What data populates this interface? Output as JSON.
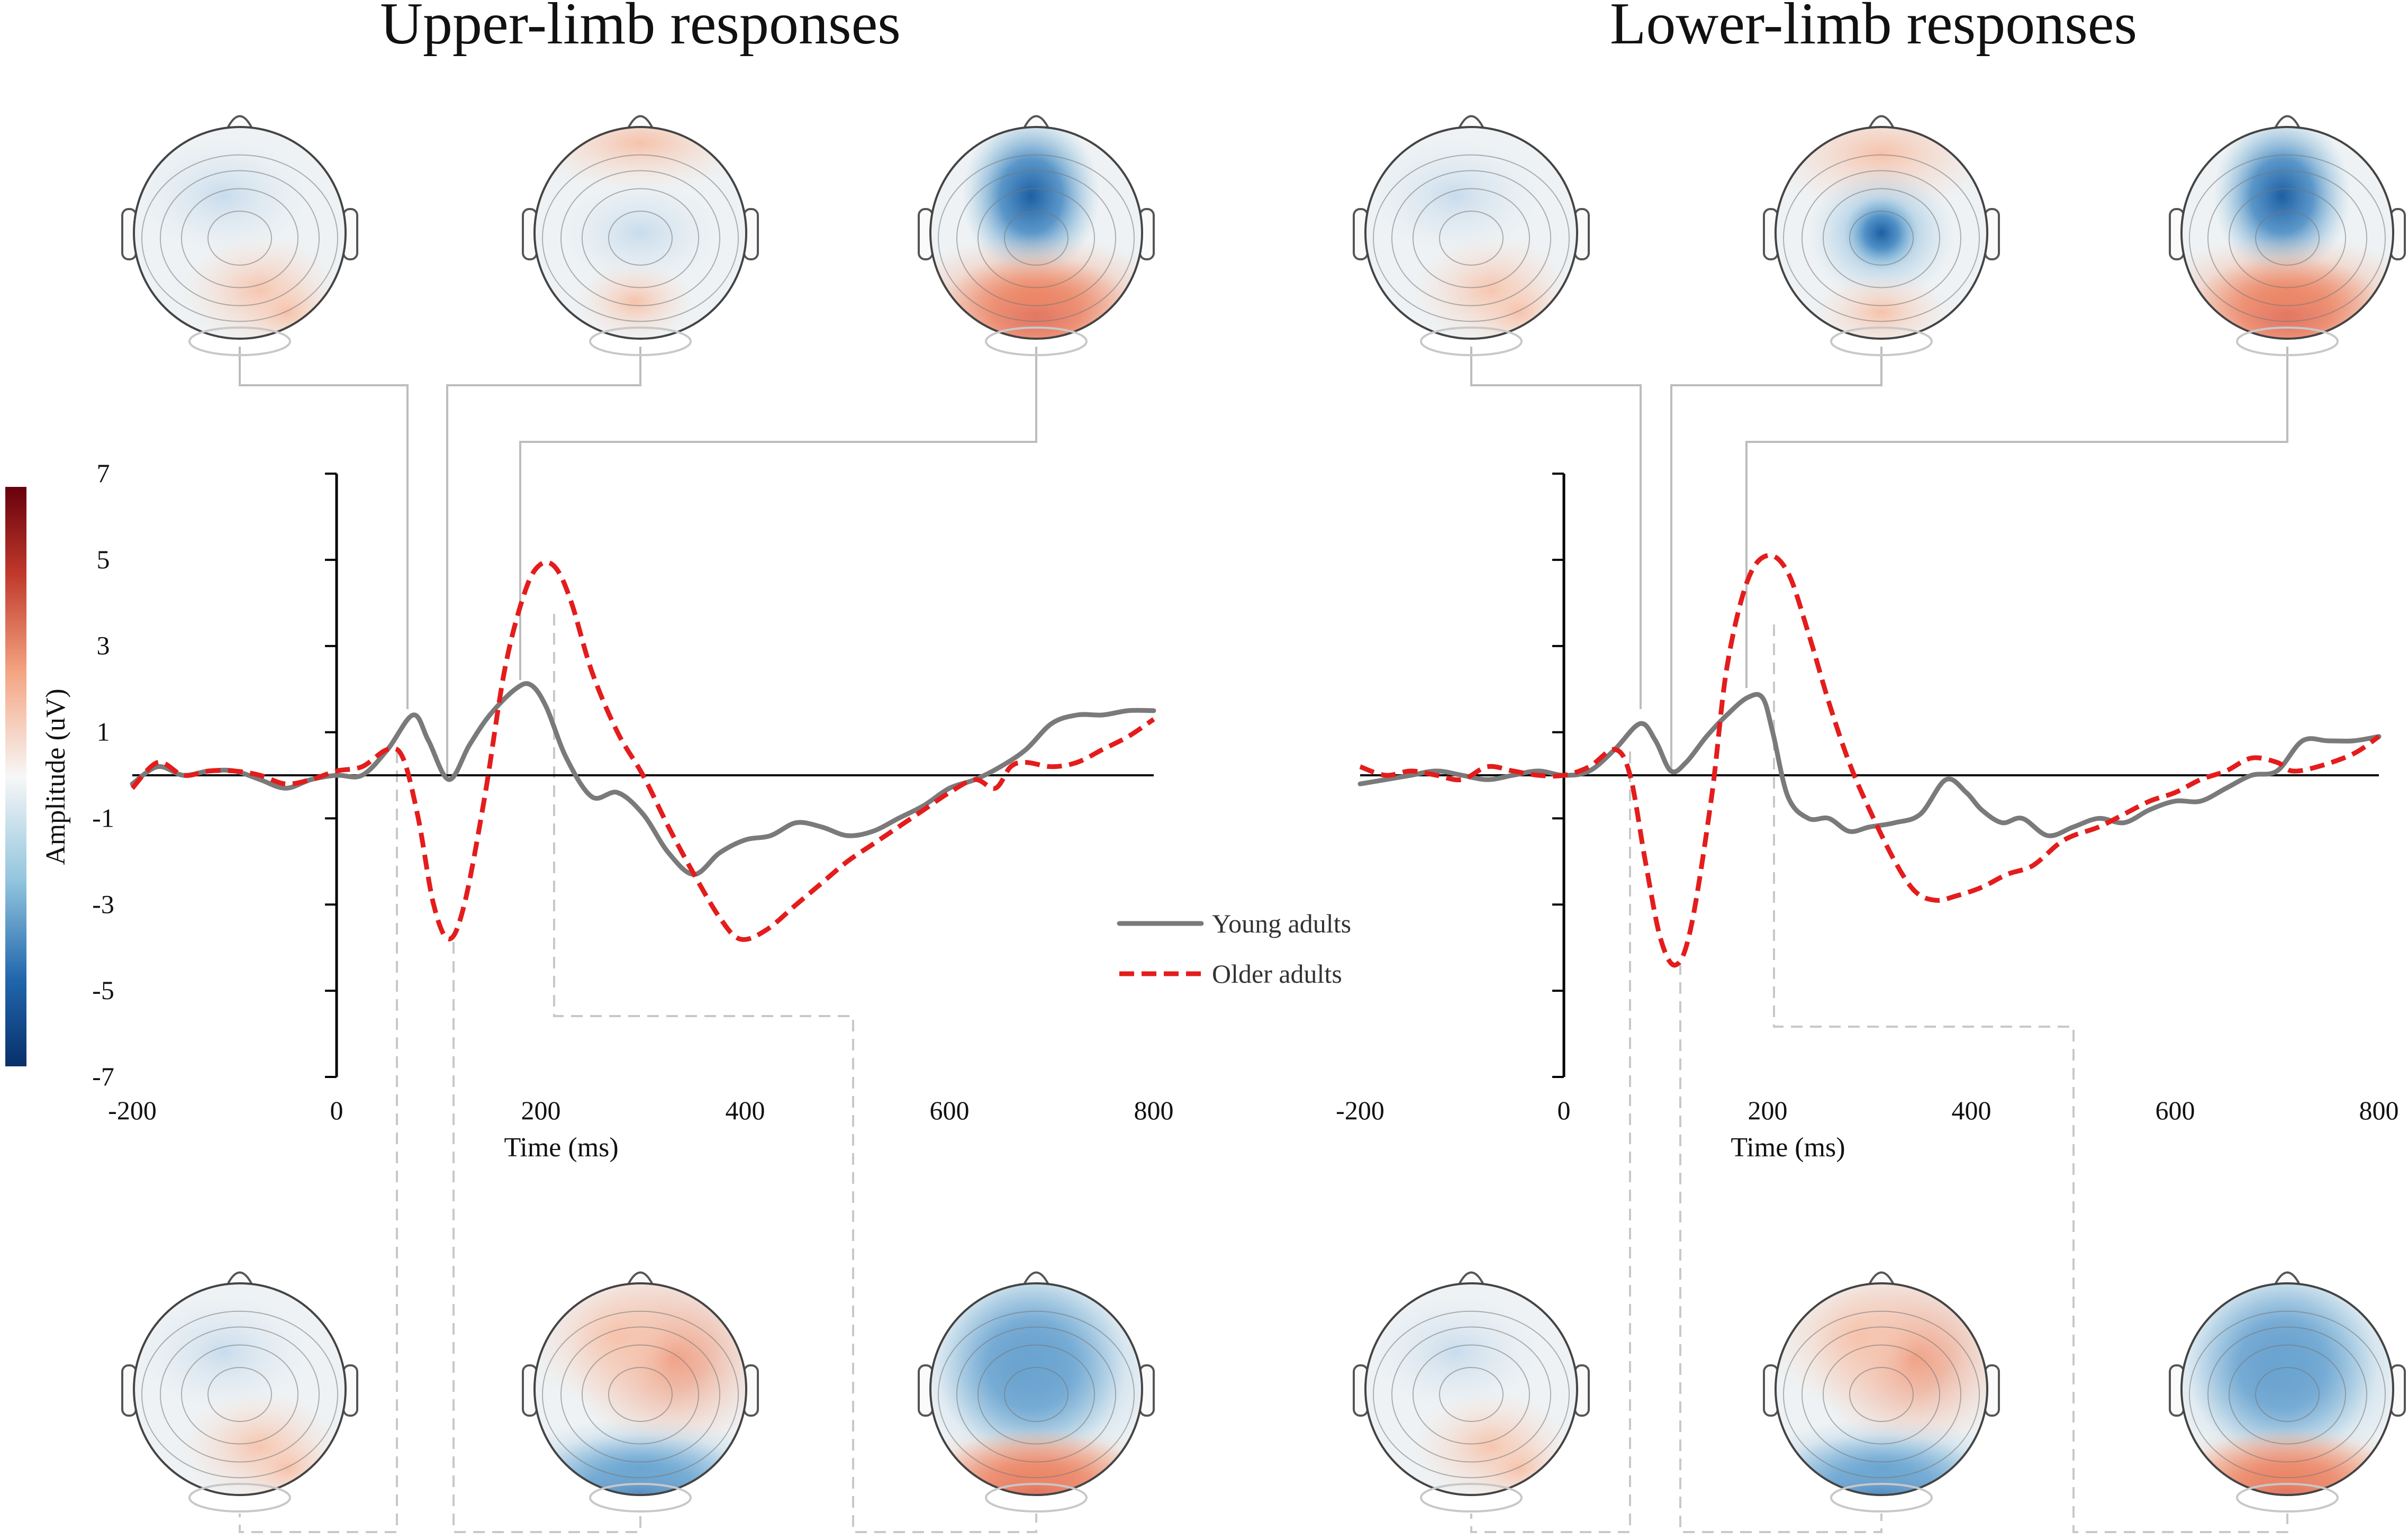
{
  "titles": {
    "left": "Upper-limb responses",
    "right": "Lower-limb responses"
  },
  "legend": {
    "young": "Young adults",
    "older": "Older adults"
  },
  "colorbar": {
    "label": "Amplitude (uV)",
    "ticks": [
      "7",
      "5",
      "3",
      "1",
      "-1",
      "-3",
      "-5",
      "-7"
    ],
    "min": -7,
    "max": 7,
    "low_color": "#08306b",
    "mid_color": "#f7f7f7",
    "high_color": "#67000d"
  },
  "colors": {
    "young": "#7a7a7a",
    "older": "#e41c1c",
    "connector": "#bdbdbd"
  },
  "chart_data": [
    {
      "type": "line",
      "title": "Upper-limb responses",
      "xlabel": "Time (ms)",
      "ylabel": "Amplitude (uV)",
      "xlim": [
        -200,
        800
      ],
      "ylim": [
        -7,
        7
      ],
      "xticks": [
        -200,
        0,
        200,
        400,
        600,
        800
      ],
      "x_tick_labels": [
        "-200",
        "0",
        "200",
        "400",
        "600",
        "800"
      ],
      "series": [
        {
          "name": "Young adults",
          "points": [
            [
              -200,
              -0.2
            ],
            [
              -175,
              0.2
            ],
            [
              -150,
              0
            ],
            [
              -125,
              0.1
            ],
            [
              -100,
              0.1
            ],
            [
              -75,
              -0.1
            ],
            [
              -50,
              -0.3
            ],
            [
              -25,
              -0.1
            ],
            [
              0,
              0
            ],
            [
              25,
              0
            ],
            [
              50,
              0.6
            ],
            [
              75,
              1.4
            ],
            [
              90,
              0.8
            ],
            [
              110,
              -0.1
            ],
            [
              130,
              0.7
            ],
            [
              150,
              1.4
            ],
            [
              175,
              2.0
            ],
            [
              190,
              2.1
            ],
            [
              205,
              1.6
            ],
            [
              225,
              0.4
            ],
            [
              250,
              -0.5
            ],
            [
              275,
              -0.4
            ],
            [
              300,
              -0.9
            ],
            [
              325,
              -1.8
            ],
            [
              350,
              -2.3
            ],
            [
              375,
              -1.8
            ],
            [
              400,
              -1.5
            ],
            [
              425,
              -1.4
            ],
            [
              450,
              -1.1
            ],
            [
              475,
              -1.2
            ],
            [
              500,
              -1.4
            ],
            [
              525,
              -1.3
            ],
            [
              550,
              -1.0
            ],
            [
              575,
              -0.7
            ],
            [
              600,
              -0.3
            ],
            [
              625,
              -0.1
            ],
            [
              650,
              0.2
            ],
            [
              675,
              0.6
            ],
            [
              700,
              1.2
            ],
            [
              725,
              1.4
            ],
            [
              750,
              1.4
            ],
            [
              775,
              1.5
            ],
            [
              800,
              1.5
            ]
          ]
        },
        {
          "name": "Older adults",
          "points": [
            [
              -200,
              -0.3
            ],
            [
              -175,
              0.3
            ],
            [
              -150,
              0
            ],
            [
              -125,
              0.1
            ],
            [
              -100,
              0.1
            ],
            [
              -75,
              0
            ],
            [
              -50,
              -0.2
            ],
            [
              -25,
              -0.1
            ],
            [
              0,
              0.1
            ],
            [
              25,
              0.2
            ],
            [
              50,
              0.6
            ],
            [
              65,
              0.4
            ],
            [
              80,
              -1.0
            ],
            [
              95,
              -3.0
            ],
            [
              110,
              -3.8
            ],
            [
              125,
              -3.0
            ],
            [
              145,
              -0.5
            ],
            [
              165,
              2.5
            ],
            [
              185,
              4.3
            ],
            [
              200,
              4.9
            ],
            [
              215,
              4.8
            ],
            [
              230,
              4.0
            ],
            [
              250,
              2.4
            ],
            [
              275,
              1.0
            ],
            [
              300,
              0
            ],
            [
              325,
              -1.2
            ],
            [
              350,
              -2.3
            ],
            [
              375,
              -3.3
            ],
            [
              395,
              -3.8
            ],
            [
              420,
              -3.6
            ],
            [
              450,
              -3.0
            ],
            [
              475,
              -2.5
            ],
            [
              500,
              -2.0
            ],
            [
              525,
              -1.6
            ],
            [
              550,
              -1.2
            ],
            [
              575,
              -0.8
            ],
            [
              600,
              -0.4
            ],
            [
              625,
              -0.1
            ],
            [
              645,
              -0.3
            ],
            [
              660,
              0.2
            ],
            [
              675,
              0.3
            ],
            [
              700,
              0.2
            ],
            [
              725,
              0.3
            ],
            [
              750,
              0.6
            ],
            [
              775,
              0.9
            ],
            [
              800,
              1.3
            ]
          ]
        }
      ],
      "topomap_latencies_young_ms": [
        75,
        110,
        180
      ],
      "topomap_latencies_older_ms": [
        60,
        115,
        215
      ]
    },
    {
      "type": "line",
      "title": "Lower-limb responses",
      "xlabel": "Time (ms)",
      "ylabel": "Amplitude (uV)",
      "xlim": [
        -200,
        800
      ],
      "ylim": [
        -7,
        7
      ],
      "xticks": [
        -200,
        0,
        200,
        400,
        600,
        800
      ],
      "x_tick_labels": [
        "-200",
        "0",
        "200",
        "400",
        "600",
        "800"
      ],
      "series": [
        {
          "name": "Young adults",
          "points": [
            [
              -200,
              -0.2
            ],
            [
              -175,
              -0.1
            ],
            [
              -150,
              0
            ],
            [
              -125,
              0.1
            ],
            [
              -100,
              0
            ],
            [
              -75,
              -0.1
            ],
            [
              -50,
              0
            ],
            [
              -25,
              0.1
            ],
            [
              0,
              0
            ],
            [
              25,
              0.1
            ],
            [
              50,
              0.6
            ],
            [
              75,
              1.2
            ],
            [
              90,
              0.8
            ],
            [
              105,
              0.1
            ],
            [
              120,
              0.3
            ],
            [
              140,
              0.9
            ],
            [
              160,
              1.4
            ],
            [
              180,
              1.8
            ],
            [
              195,
              1.8
            ],
            [
              205,
              1.0
            ],
            [
              220,
              -0.5
            ],
            [
              240,
              -1.0
            ],
            [
              260,
              -1.0
            ],
            [
              280,
              -1.3
            ],
            [
              300,
              -1.2
            ],
            [
              325,
              -1.1
            ],
            [
              350,
              -0.9
            ],
            [
              375,
              -0.1
            ],
            [
              395,
              -0.4
            ],
            [
              410,
              -0.8
            ],
            [
              430,
              -1.1
            ],
            [
              450,
              -1.0
            ],
            [
              475,
              -1.4
            ],
            [
              500,
              -1.2
            ],
            [
              525,
              -1.0
            ],
            [
              550,
              -1.1
            ],
            [
              575,
              -0.8
            ],
            [
              600,
              -0.6
            ],
            [
              625,
              -0.6
            ],
            [
              650,
              -0.3
            ],
            [
              675,
              0
            ],
            [
              700,
              0.1
            ],
            [
              725,
              0.8
            ],
            [
              750,
              0.8
            ],
            [
              775,
              0.8
            ],
            [
              800,
              0.9
            ]
          ]
        },
        {
          "name": "Older adults",
          "points": [
            [
              -200,
              0.2
            ],
            [
              -175,
              0
            ],
            [
              -150,
              0.1
            ],
            [
              -125,
              0
            ],
            [
              -100,
              -0.1
            ],
            [
              -75,
              0.2
            ],
            [
              -50,
              0.1
            ],
            [
              -25,
              0
            ],
            [
              0,
              0
            ],
            [
              25,
              0.2
            ],
            [
              50,
              0.6
            ],
            [
              65,
              0
            ],
            [
              80,
              -2.0
            ],
            [
              95,
              -3.8
            ],
            [
              110,
              -4.4
            ],
            [
              125,
              -3.5
            ],
            [
              145,
              -0.5
            ],
            [
              160,
              2.5
            ],
            [
              180,
              4.5
            ],
            [
              200,
              5.1
            ],
            [
              220,
              4.7
            ],
            [
              240,
              3.3
            ],
            [
              260,
              1.7
            ],
            [
              280,
              0.3
            ],
            [
              300,
              -0.8
            ],
            [
              325,
              -2.0
            ],
            [
              345,
              -2.7
            ],
            [
              365,
              -2.9
            ],
            [
              385,
              -2.8
            ],
            [
              410,
              -2.6
            ],
            [
              435,
              -2.3
            ],
            [
              460,
              -2.1
            ],
            [
              485,
              -1.6
            ],
            [
              500,
              -1.4
            ],
            [
              525,
              -1.2
            ],
            [
              550,
              -0.9
            ],
            [
              575,
              -0.6
            ],
            [
              600,
              -0.4
            ],
            [
              625,
              -0.1
            ],
            [
              650,
              0.1
            ],
            [
              675,
              0.4
            ],
            [
              700,
              0.3
            ],
            [
              715,
              0.1
            ],
            [
              740,
              0.2
            ],
            [
              775,
              0.5
            ],
            [
              800,
              0.9
            ]
          ]
        }
      ],
      "topomap_latencies_young_ms": [
        75,
        105,
        180
      ],
      "topomap_latencies_older_ms": [
        60,
        115,
        205
      ]
    }
  ]
}
